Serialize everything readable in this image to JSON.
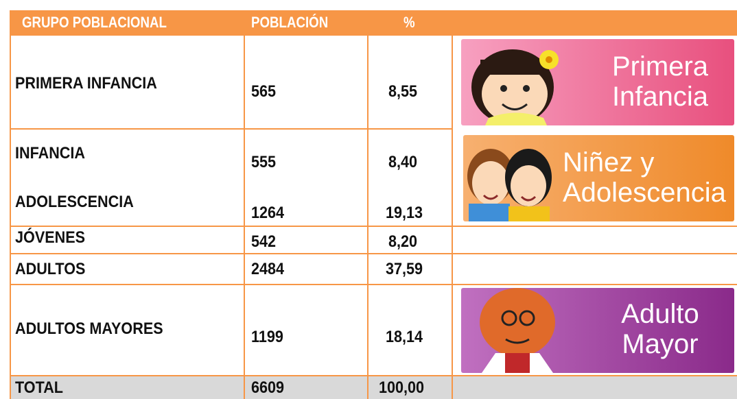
{
  "table": {
    "header": [
      "GRUPO POBLACIONAL",
      "POBLACIÓN",
      "%"
    ],
    "rows": [
      [
        "PRIMERA INFANCIA",
        "565",
        "8,55"
      ],
      [
        "INFANCIA",
        "555",
        "8,40"
      ],
      [
        "ADOLESCENCIA",
        "1264",
        "19,13"
      ],
      [
        "JÓVENES",
        "542",
        "8,20"
      ],
      [
        "ADULTOS",
        "2484",
        "37,59"
      ],
      [
        "ADULTOS MAYORES",
        "1199",
        "18,14"
      ]
    ],
    "total": [
      "TOTAL",
      "6609",
      "100,00"
    ]
  },
  "banners": [
    [
      "Primera",
      "Infancia"
    ],
    [
      "Niñez y",
      "Adolescencia"
    ],
    [
      "Adulto",
      "Mayor"
    ]
  ]
}
